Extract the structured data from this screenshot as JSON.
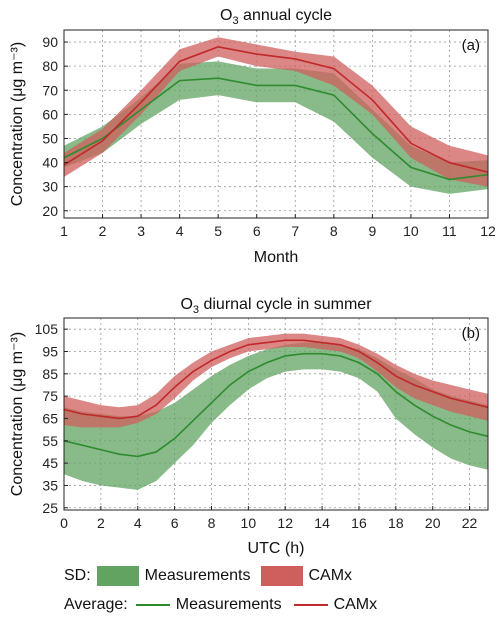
{
  "colors": {
    "measurements_band": "#62a362",
    "camx_band": "#cf5f5c",
    "measurements_line": "#2e8b2e",
    "camx_line": "#c0282a"
  },
  "chart_data": [
    {
      "type": "line",
      "panel_label": "(a)",
      "title_main": "O",
      "title_sub": "3",
      "title_rest": " annual cycle",
      "xlabel": "Month",
      "ylabel": "Concentration (μg m⁻³)",
      "xlim": [
        1,
        12
      ],
      "ylim": [
        17,
        95
      ],
      "xticks": [
        1,
        2,
        3,
        4,
        5,
        6,
        7,
        8,
        9,
        10,
        11,
        12
      ],
      "yticks": [
        20,
        30,
        40,
        50,
        60,
        70,
        80,
        90
      ],
      "grid": true,
      "x": [
        1,
        2,
        3,
        4,
        5,
        6,
        7,
        8,
        9,
        10,
        11,
        12
      ],
      "series": [
        {
          "name": "Measurements",
          "mean": [
            42,
            50,
            62,
            74,
            75,
            72,
            72,
            68,
            52,
            38,
            33,
            35
          ],
          "lower": [
            38,
            44,
            56,
            66,
            68,
            65,
            65,
            57,
            42,
            30,
            27,
            29
          ],
          "upper": [
            47,
            55,
            67,
            81,
            82,
            79,
            79,
            77,
            62,
            47,
            40,
            41
          ]
        },
        {
          "name": "CAMx",
          "mean": [
            39,
            49,
            65,
            82,
            88,
            85,
            83,
            79,
            66,
            48,
            40,
            36
          ],
          "lower": [
            34,
            44,
            60,
            78,
            84,
            80,
            78,
            72,
            60,
            42,
            33,
            30
          ],
          "upper": [
            44,
            54,
            70,
            87,
            92,
            89,
            86,
            84,
            72,
            55,
            47,
            43
          ]
        }
      ]
    },
    {
      "type": "line",
      "panel_label": "(b)",
      "title_main": "O",
      "title_sub": "3",
      "title_rest": " diurnal cycle in summer",
      "xlabel": "UTC (h)",
      "ylabel": "Concentration (μg m⁻³)",
      "xlim": [
        0,
        23
      ],
      "ylim": [
        24,
        110
      ],
      "xticks": [
        0,
        2,
        4,
        6,
        8,
        10,
        12,
        14,
        16,
        18,
        20,
        22
      ],
      "yticks": [
        25,
        35,
        45,
        55,
        65,
        75,
        85,
        95,
        105
      ],
      "grid": true,
      "x": [
        0,
        1,
        2,
        3,
        4,
        5,
        6,
        7,
        8,
        9,
        10,
        11,
        12,
        13,
        14,
        15,
        16,
        17,
        18,
        19,
        20,
        21,
        22,
        23
      ],
      "series": [
        {
          "name": "Measurements",
          "mean": [
            55,
            53,
            51,
            49,
            48,
            50,
            56,
            64,
            72,
            80,
            86,
            90,
            93,
            94,
            94,
            93,
            90,
            85,
            77,
            71,
            66,
            62,
            59,
            57
          ],
          "lower": [
            40,
            37,
            35,
            34,
            33,
            37,
            45,
            53,
            63,
            71,
            78,
            83,
            86,
            87,
            87,
            86,
            83,
            77,
            65,
            58,
            52,
            47,
            44,
            42
          ],
          "upper": [
            70,
            68,
            67,
            66,
            66,
            68,
            72,
            78,
            84,
            89,
            93,
            96,
            98,
            99,
            99,
            98,
            96,
            92,
            87,
            83,
            78,
            75,
            73,
            71
          ]
        },
        {
          "name": "CAMx",
          "mean": [
            69,
            67,
            66,
            65,
            66,
            71,
            79,
            86,
            91,
            95,
            98,
            99,
            100,
            100,
            99,
            98,
            95,
            90,
            84,
            80,
            77,
            74,
            72,
            70
          ],
          "lower": [
            62,
            61,
            61,
            61,
            63,
            67,
            74,
            82,
            88,
            92,
            95,
            96,
            97,
            97,
            96,
            95,
            92,
            86,
            79,
            74,
            71,
            68,
            66,
            64
          ],
          "upper": [
            75,
            73,
            71,
            70,
            71,
            76,
            84,
            90,
            95,
            98,
            101,
            102,
            103,
            103,
            102,
            101,
            98,
            94,
            89,
            85,
            82,
            80,
            78,
            76
          ]
        }
      ]
    }
  ],
  "legend": {
    "sd_label": "SD:",
    "average_label": "Average:",
    "measurements": "Measurements",
    "camx": "CAMx"
  }
}
